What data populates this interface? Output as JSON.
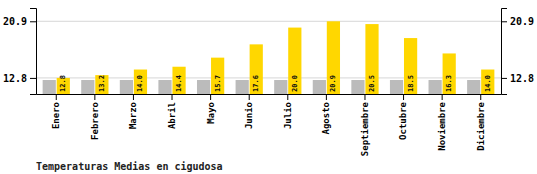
{
  "chart_data": {
    "type": "bar",
    "title": "Temperaturas Medias en cigudosa",
    "categories": [
      "Enero",
      "Febrero",
      "Marzo",
      "Abril",
      "Mayo",
      "Junio",
      "Julio",
      "Agosto",
      "Septiembre",
      "Octubre",
      "Noviembre",
      "Diciembre"
    ],
    "series": [
      {
        "color": "#BBBBBB",
        "values": [
          12.5,
          12.5,
          12.5,
          12.5,
          12.5,
          12.5,
          12.5,
          12.5,
          12.5,
          12.5,
          12.5,
          12.5
        ]
      },
      {
        "color": "#FFD700",
        "values": [
          12.8,
          13.2,
          14.0,
          14.4,
          15.7,
          17.6,
          20.0,
          20.9,
          20.5,
          18.5,
          16.3,
          14.0
        ],
        "value_labels": [
          "12.8",
          "13.2",
          "14.0",
          "14.4",
          "15.7",
          "17.6",
          "20.0",
          "20.9",
          "20.5",
          "18.5",
          "16.3",
          "14.0"
        ],
        "data_labels": true
      }
    ],
    "ylim": [
      10.5,
      22.8
    ],
    "yticks": [
      12.8,
      20.9
    ],
    "grid": true
  }
}
